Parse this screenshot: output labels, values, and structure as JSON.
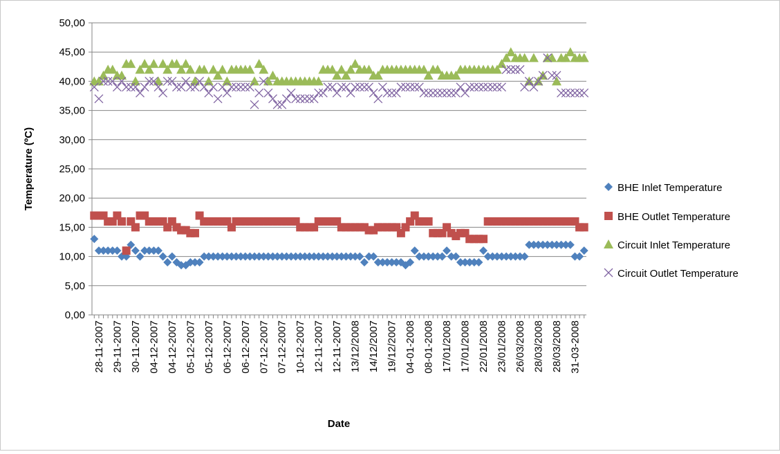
{
  "chart_data": {
    "type": "scatter-line-markers",
    "y_label": "Temperature (ºC)",
    "x_label": "Date",
    "ylim": [
      0,
      50
    ],
    "yticks": [
      {
        "value": 0,
        "label": "0,00"
      },
      {
        "value": 5,
        "label": "5,00"
      },
      {
        "value": 10,
        "label": "10,00"
      },
      {
        "value": 15,
        "label": "15,00"
      },
      {
        "value": 20,
        "label": "20,00"
      },
      {
        "value": 25,
        "label": "25,00"
      },
      {
        "value": 30,
        "label": "30,00"
      },
      {
        "value": 35,
        "label": "35,00"
      },
      {
        "value": 40,
        "label": "40,00"
      },
      {
        "value": 45,
        "label": "45,00"
      },
      {
        "value": 50,
        "label": "50,00"
      }
    ],
    "grid": true,
    "legend": "right",
    "categories": [
      null,
      "28-11-2007",
      null,
      null,
      null,
      "29-11-2007",
      null,
      null,
      null,
      "30-11-2007",
      null,
      null,
      null,
      "04-12-2007",
      null,
      null,
      null,
      "04-12-2007",
      null,
      null,
      null,
      "05-12-2007",
      null,
      null,
      null,
      "05-12-2007",
      null,
      null,
      null,
      "06-12-2007",
      null,
      null,
      null,
      "06-12-2007",
      null,
      null,
      null,
      "07-12-2007",
      null,
      null,
      null,
      "07-12-2007",
      null,
      null,
      null,
      "10-12-2007",
      null,
      null,
      null,
      "12-11-2007",
      null,
      null,
      null,
      "12-11-2007",
      null,
      null,
      null,
      "13/12/2008",
      null,
      null,
      null,
      "14/12/2007",
      null,
      null,
      null,
      "19/12/2007",
      null,
      null,
      null,
      "04-01-2008",
      null,
      null,
      null,
      "08-01-2008",
      null,
      null,
      null,
      "17/01/2008",
      null,
      null,
      null,
      "17/01/2008",
      null,
      null,
      null,
      "22/01/2008",
      null,
      null,
      null,
      "23/01/2008",
      null,
      null,
      null,
      "26/03/2008",
      null,
      null,
      null,
      "28/03/2008",
      null,
      null,
      null,
      "28/03/2008",
      null,
      null,
      null,
      "31-03-2008",
      null,
      null
    ],
    "series": [
      {
        "name": "BHE Inlet Temperature",
        "color": "#4f81bd",
        "marker": "diamond",
        "values": [
          13,
          11,
          11,
          11,
          11,
          11,
          10,
          10,
          12,
          11,
          10,
          11,
          11,
          11,
          11,
          10,
          9,
          10,
          9,
          8.5,
          8.5,
          9,
          9,
          9,
          10,
          10,
          10,
          10,
          10,
          10,
          10,
          10,
          10,
          10,
          10,
          10,
          10,
          10,
          10,
          10,
          10,
          10,
          10,
          10,
          10,
          10,
          10,
          10,
          10,
          10,
          10,
          10,
          10,
          10,
          10,
          10,
          10,
          10,
          10,
          9,
          10,
          10,
          9,
          9,
          9,
          9,
          9,
          9,
          8.5,
          9,
          11,
          10,
          10,
          10,
          10,
          10,
          10,
          11,
          10,
          10,
          9,
          9,
          9,
          9,
          9,
          11,
          10,
          10,
          10,
          10,
          10,
          10,
          10,
          10,
          10,
          12,
          12,
          12,
          12,
          12,
          12,
          12,
          12,
          12,
          12,
          10,
          10,
          11
        ]
      },
      {
        "name": "BHE Outlet Temperature",
        "color": "#c0504d",
        "marker": "square",
        "values": [
          17,
          17,
          17,
          16,
          16,
          17,
          16,
          11,
          16,
          15,
          17,
          17,
          16,
          16,
          16,
          16,
          15,
          16,
          15,
          14.5,
          14.5,
          14,
          14,
          17,
          16,
          16,
          16,
          16,
          16,
          16,
          15,
          16,
          16,
          16,
          16,
          16,
          16,
          16,
          16,
          16,
          16,
          16,
          16,
          16,
          16,
          15,
          15,
          15,
          15,
          16,
          16,
          16,
          16,
          16,
          15,
          15,
          15,
          15,
          15,
          15,
          14.5,
          14.5,
          15,
          15,
          15,
          15,
          15,
          14,
          15,
          16,
          17,
          16,
          16,
          16,
          14,
          14,
          14,
          15,
          14,
          13.5,
          14,
          14,
          13,
          13,
          13,
          13,
          16,
          16,
          16,
          16,
          16,
          16,
          16,
          16,
          16,
          16,
          16,
          16,
          16,
          16,
          16,
          16,
          16,
          16,
          16,
          16,
          15,
          15
        ]
      },
      {
        "name": "Circuit Inlet Temperature",
        "color": "#9bbb59",
        "marker": "triangle",
        "values": [
          40,
          40,
          41,
          42,
          42,
          41,
          41,
          43,
          43,
          40,
          42,
          43,
          42,
          43,
          40,
          43,
          42,
          43,
          43,
          42,
          43,
          42,
          40,
          42,
          42,
          40,
          42,
          41,
          42,
          40,
          42,
          42,
          42,
          42,
          42,
          40,
          43,
          42,
          40,
          41,
          40,
          40,
          40,
          40,
          40,
          40,
          40,
          40,
          40,
          40,
          42,
          42,
          42,
          41,
          42,
          41,
          42,
          43,
          42,
          42,
          42,
          41,
          41,
          42,
          42,
          42,
          42,
          42,
          42,
          42,
          42,
          42,
          42,
          41,
          42,
          42,
          41,
          41,
          41,
          41,
          42,
          42,
          42,
          42,
          42,
          42,
          42,
          42,
          42,
          43,
          44,
          45,
          44,
          44,
          44,
          40,
          44,
          40,
          41,
          44,
          44,
          40,
          44,
          44,
          45,
          44,
          44,
          44
        ]
      },
      {
        "name": "Circuit Outlet Temperature",
        "color": "#8064a2",
        "marker": "x",
        "values": [
          39,
          37,
          40,
          40,
          40,
          39,
          40,
          39,
          39,
          39,
          38,
          39,
          40,
          40,
          39,
          38,
          40,
          40,
          39,
          39,
          40,
          39,
          39,
          40,
          39,
          38,
          39,
          37,
          39,
          38,
          39,
          39,
          39,
          39,
          39,
          36,
          38,
          40,
          38,
          37,
          36,
          36,
          37,
          38,
          37,
          37,
          37,
          37,
          37,
          38,
          38,
          39,
          39,
          38,
          39,
          39,
          38,
          39,
          39,
          39,
          39,
          38,
          37,
          39,
          38,
          38,
          38,
          39,
          39,
          39,
          39,
          39,
          38,
          38,
          38,
          38,
          38,
          38,
          38,
          38,
          39,
          38,
          39,
          39,
          39,
          39,
          39,
          39,
          39,
          39,
          42,
          42,
          42,
          42,
          39,
          40,
          39,
          40,
          41,
          44,
          41,
          41,
          38,
          38,
          38,
          38,
          38,
          38
        ]
      }
    ]
  }
}
